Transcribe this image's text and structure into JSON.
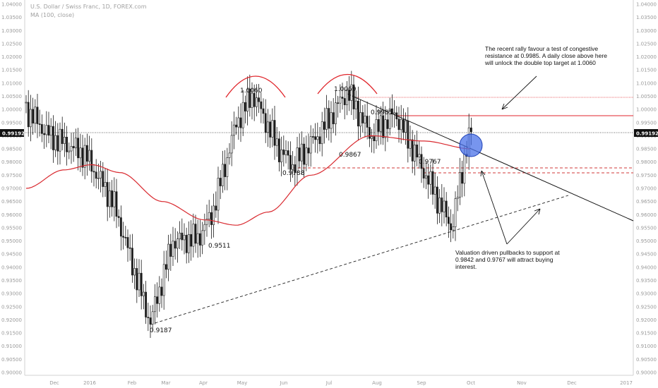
{
  "header": {
    "symbol": "U.S. Dollar / Swiss Franc, 1D, FOREX.com",
    "indicator": "MA (100, close)"
  },
  "chart_data": {
    "type": "line",
    "title": "U.S. Dollar / Swiss Franc, 1D, FOREX.com",
    "xlabel": "",
    "ylabel": "",
    "ylim": [
      0.9,
      1.04
    ],
    "grid": false,
    "y_ticks": [
      "1.04000",
      "1.03500",
      "1.03000",
      "1.02500",
      "1.02000",
      "1.01500",
      "1.01000",
      "1.00500",
      "1.00000",
      "0.99500",
      "0.99000",
      "0.98500",
      "0.98000",
      "0.97500",
      "0.97000",
      "0.96500",
      "0.96000",
      "0.95500",
      "0.95000",
      "0.94500",
      "0.94000",
      "0.93500",
      "0.93000",
      "0.92500",
      "0.92000",
      "0.91500",
      "0.91000",
      "0.90500",
      "0.90000"
    ],
    "x_ticks": [
      "Dec",
      "2016",
      "Feb",
      "Mar",
      "Apr",
      "May",
      "Jun",
      "Jul",
      "Aug",
      "Sep",
      "Oct",
      "Nov",
      "Dec",
      "2017"
    ],
    "last_price": "0.99192",
    "series": [
      {
        "name": "USD/CHF",
        "x": [
          "Nov",
          "Dec",
          "2016",
          "Feb",
          "Feb",
          "Mar",
          "Apr",
          "Apr",
          "May",
          "May",
          "Jun",
          "Jun",
          "Jul",
          "Jul",
          "Aug",
          "Aug",
          "Sep",
          "Sep",
          "Oct",
          "Oct"
        ],
        "values": [
          1.0,
          0.99,
          0.983,
          0.965,
          0.919,
          0.95,
          0.951,
          0.96,
          0.995,
          1.006,
          0.985,
          0.9788,
          0.99,
          1.0069,
          0.99,
          0.9985,
          0.9767,
          0.955,
          0.985,
          0.992
        ]
      },
      {
        "name": "MA (100, close)",
        "x": [
          "Nov",
          "Dec",
          "2016",
          "Feb",
          "Mar",
          "Apr",
          "May",
          "Jun",
          "Jul",
          "Aug",
          "Sep",
          "Oct"
        ],
        "values": [
          0.97,
          0.977,
          0.979,
          0.976,
          0.965,
          0.958,
          0.956,
          0.961,
          0.975,
          0.99,
          0.988,
          0.985
        ]
      }
    ],
    "levels": [
      {
        "label": "1.0060"
      },
      {
        "label": "1.0069"
      },
      {
        "label": "0.9985"
      },
      {
        "label": "0.9867"
      },
      {
        "label": "0.9788"
      },
      {
        "label": "0.9767"
      },
      {
        "label": "0.9511"
      },
      {
        "label": "0.9187"
      }
    ],
    "annotations": [
      {
        "text": [
          "The recent rally favour a test of congestive",
          "resistance at 0.9985. A daily close above here",
          "will unlock the double top target at 1.0060"
        ]
      },
      {
        "text": [
          "Valuation driven pullbacks to support at",
          "0.9842 and 0.9767 will attract buying",
          "interest."
        ]
      }
    ]
  },
  "colors": {
    "candle": "#1a1a1a",
    "moving_average": "#d9292f",
    "resistance_line": "#e0262c",
    "support_dashed": "#d23a3a",
    "trendline": "#111111",
    "circle_fill": "#4a72e8",
    "price_tag": "#111111"
  }
}
